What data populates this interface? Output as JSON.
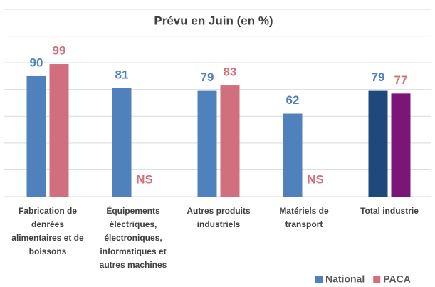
{
  "chart_data": {
    "type": "bar",
    "title": "Prévu en Juin (en %)",
    "categories": [
      "Fabrication de denrées alimentaires et de boissons",
      "Équipements électriques, électroniques, informatiques et autres machines",
      "Autres produits industriels",
      "Matériels de transport",
      "Total industrie"
    ],
    "series": [
      {
        "name": "National",
        "color": "#4f81bd",
        "colors": [
          "#4f81bd",
          "#4f81bd",
          "#4f81bd",
          "#4f81bd",
          "#1f497d"
        ],
        "values": [
          90,
          81,
          79,
          62,
          79
        ]
      },
      {
        "name": "PACA",
        "color": "#d26f7f",
        "colors": [
          "#d26f7f",
          "#d26f7f",
          "#d26f7f",
          "#d26f7f",
          "#7b1678"
        ],
        "values": [
          99,
          null,
          83,
          null,
          77
        ],
        "value_labels": [
          "99",
          "NS",
          "83",
          "NS",
          "77"
        ]
      }
    ],
    "ylim": [
      0,
      140
    ],
    "yticks": [
      0,
      20,
      40,
      60,
      80,
      100,
      120,
      140
    ],
    "grid": true,
    "legend": "bottom-right"
  }
}
